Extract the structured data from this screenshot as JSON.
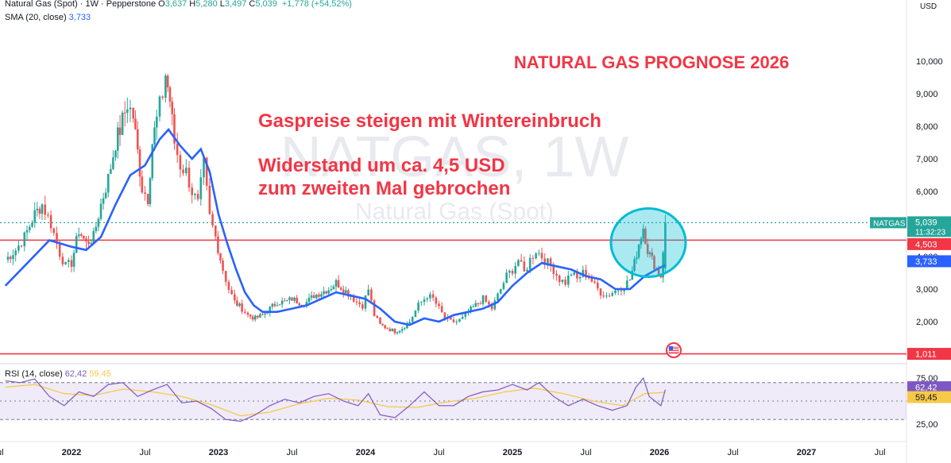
{
  "header": {
    "symbol_line": "Natural Gas (Spot) · 1W · Pepperstone",
    "ohlc": [
      {
        "k": "O",
        "v": "3,637"
      },
      {
        "k": "H",
        "v": "5,280"
      },
      {
        "k": "L",
        "v": "3,497"
      },
      {
        "k": "C",
        "v": "5,039"
      }
    ],
    "change": "+1,778 (+54,52%)",
    "sma_label": "SMA (20, close)",
    "sma_value": "3,733",
    "currency": "USD"
  },
  "watermark": {
    "big": "NATGAS, 1W",
    "small": "Natural Gas (Spot)"
  },
  "annotations": {
    "title": "NATURAL GAS PROGNOSE 2026",
    "line1": "Gaspreise steigen mit Wintereinbruch",
    "line2": "Widerstand um ca. 4,5 USD",
    "line3": "zum zweiten Mal gebrochen"
  },
  "price_labels": {
    "symbol_tag": "NATGAS",
    "last": "5,039",
    "countdown": "11:32:23",
    "resistance": "4,503",
    "sma": "3,733",
    "support": "1,011"
  },
  "rsi": {
    "label": "RSI (14, close)",
    "value": "62,42",
    "ma_value": "59,45",
    "ticks": [
      "75,00",
      "25,00"
    ]
  },
  "colors": {
    "up": "#26a69a",
    "down": "#ef5350",
    "sma": "#2962ff",
    "hline": "#f23645",
    "annotation": "#f23645",
    "circle": "#00bcd4",
    "rsi_line": "#7e57c2",
    "rsi_ma": "#f7c948"
  },
  "chart_data": {
    "type": "candlestick",
    "timeframe": "1W",
    "y_axis_ticks": [
      "10,000",
      "9,000",
      "8,000",
      "7,000",
      "6,000",
      "4,000",
      "3,000",
      "2,000"
    ],
    "x_axis_ticks": [
      "Jul",
      "2022",
      "Jul",
      "2023",
      "Jul",
      "2024",
      "Jul",
      "2025",
      "Jul",
      "2026",
      "Jul",
      "2027",
      "Jul"
    ],
    "ylim": [
      1.0,
      10.2
    ],
    "horizontal_lines": [
      {
        "price": 4.503
      },
      {
        "price": 1.011
      },
      {
        "price": 5.039,
        "style": "dotted"
      }
    ],
    "close_path": [
      {
        "x": 2021.55,
        "y": 3.9
      },
      {
        "x": 2021.62,
        "y": 4.2
      },
      {
        "x": 2021.68,
        "y": 4.6
      },
      {
        "x": 2021.75,
        "y": 5.3
      },
      {
        "x": 2021.8,
        "y": 5.6
      },
      {
        "x": 2021.86,
        "y": 5.0
      },
      {
        "x": 2021.92,
        "y": 4.1
      },
      {
        "x": 2021.96,
        "y": 3.7
      },
      {
        "x": 2022.0,
        "y": 3.8
      },
      {
        "x": 2022.05,
        "y": 4.8
      },
      {
        "x": 2022.1,
        "y": 4.4
      },
      {
        "x": 2022.15,
        "y": 4.6
      },
      {
        "x": 2022.2,
        "y": 5.6
      },
      {
        "x": 2022.25,
        "y": 6.4
      },
      {
        "x": 2022.3,
        "y": 7.5
      },
      {
        "x": 2022.33,
        "y": 7.9
      },
      {
        "x": 2022.38,
        "y": 8.7
      },
      {
        "x": 2022.42,
        "y": 8.3
      },
      {
        "x": 2022.45,
        "y": 7.2
      },
      {
        "x": 2022.48,
        "y": 6.1
      },
      {
        "x": 2022.52,
        "y": 5.8
      },
      {
        "x": 2022.55,
        "y": 7.5
      },
      {
        "x": 2022.58,
        "y": 8.2
      },
      {
        "x": 2022.62,
        "y": 9.0
      },
      {
        "x": 2022.64,
        "y": 9.6
      },
      {
        "x": 2022.67,
        "y": 8.8
      },
      {
        "x": 2022.7,
        "y": 7.5
      },
      {
        "x": 2022.74,
        "y": 6.8
      },
      {
        "x": 2022.78,
        "y": 6.6
      },
      {
        "x": 2022.82,
        "y": 6.0
      },
      {
        "x": 2022.86,
        "y": 5.6
      },
      {
        "x": 2022.9,
        "y": 6.8
      },
      {
        "x": 2022.94,
        "y": 5.2
      },
      {
        "x": 2022.98,
        "y": 4.6
      },
      {
        "x": 2023.03,
        "y": 3.6
      },
      {
        "x": 2023.07,
        "y": 3.0
      },
      {
        "x": 2023.11,
        "y": 2.6
      },
      {
        "x": 2023.16,
        "y": 2.4
      },
      {
        "x": 2023.2,
        "y": 2.2
      },
      {
        "x": 2023.25,
        "y": 2.1
      },
      {
        "x": 2023.3,
        "y": 2.2
      },
      {
        "x": 2023.35,
        "y": 2.4
      },
      {
        "x": 2023.4,
        "y": 2.6
      },
      {
        "x": 2023.45,
        "y": 2.6
      },
      {
        "x": 2023.5,
        "y": 2.7
      },
      {
        "x": 2023.55,
        "y": 2.6
      },
      {
        "x": 2023.6,
        "y": 2.6
      },
      {
        "x": 2023.65,
        "y": 2.8
      },
      {
        "x": 2023.7,
        "y": 2.9
      },
      {
        "x": 2023.75,
        "y": 3.0
      },
      {
        "x": 2023.8,
        "y": 3.2
      },
      {
        "x": 2023.85,
        "y": 3.0
      },
      {
        "x": 2023.9,
        "y": 2.8
      },
      {
        "x": 2023.94,
        "y": 2.6
      },
      {
        "x": 2023.98,
        "y": 2.5
      },
      {
        "x": 2024.02,
        "y": 3.0
      },
      {
        "x": 2024.06,
        "y": 2.2
      },
      {
        "x": 2024.1,
        "y": 1.9
      },
      {
        "x": 2024.15,
        "y": 1.8
      },
      {
        "x": 2024.2,
        "y": 1.7
      },
      {
        "x": 2024.25,
        "y": 1.8
      },
      {
        "x": 2024.3,
        "y": 2.0
      },
      {
        "x": 2024.36,
        "y": 2.5
      },
      {
        "x": 2024.42,
        "y": 2.8
      },
      {
        "x": 2024.46,
        "y": 2.7
      },
      {
        "x": 2024.5,
        "y": 2.4
      },
      {
        "x": 2024.54,
        "y": 2.1
      },
      {
        "x": 2024.58,
        "y": 2.0
      },
      {
        "x": 2024.62,
        "y": 2.0
      },
      {
        "x": 2024.66,
        "y": 2.1
      },
      {
        "x": 2024.7,
        "y": 2.3
      },
      {
        "x": 2024.75,
        "y": 2.5
      },
      {
        "x": 2024.8,
        "y": 2.7
      },
      {
        "x": 2024.86,
        "y": 2.4
      },
      {
        "x": 2024.92,
        "y": 3.0
      },
      {
        "x": 2024.96,
        "y": 3.4
      },
      {
        "x": 2025.0,
        "y": 3.6
      },
      {
        "x": 2025.04,
        "y": 3.9
      },
      {
        "x": 2025.08,
        "y": 3.5
      },
      {
        "x": 2025.12,
        "y": 3.9
      },
      {
        "x": 2025.16,
        "y": 4.2
      },
      {
        "x": 2025.2,
        "y": 4.0
      },
      {
        "x": 2025.24,
        "y": 3.8
      },
      {
        "x": 2025.28,
        "y": 3.6
      },
      {
        "x": 2025.32,
        "y": 3.3
      },
      {
        "x": 2025.36,
        "y": 3.2
      },
      {
        "x": 2025.4,
        "y": 3.5
      },
      {
        "x": 2025.44,
        "y": 3.3
      },
      {
        "x": 2025.48,
        "y": 3.5
      },
      {
        "x": 2025.52,
        "y": 3.4
      },
      {
        "x": 2025.56,
        "y": 3.1
      },
      {
        "x": 2025.6,
        "y": 2.9
      },
      {
        "x": 2025.64,
        "y": 2.8
      },
      {
        "x": 2025.68,
        "y": 2.9
      },
      {
        "x": 2025.72,
        "y": 3.0
      },
      {
        "x": 2025.76,
        "y": 3.1
      },
      {
        "x": 2025.8,
        "y": 3.3
      },
      {
        "x": 2025.83,
        "y": 3.8
      },
      {
        "x": 2025.86,
        "y": 4.4
      },
      {
        "x": 2025.89,
        "y": 4.9
      },
      {
        "x": 2025.92,
        "y": 4.2
      },
      {
        "x": 2025.95,
        "y": 3.9
      },
      {
        "x": 2025.98,
        "y": 3.6
      },
      {
        "x": 2026.01,
        "y": 3.4
      },
      {
        "x": 2026.04,
        "y": 5.039
      }
    ],
    "sma_path": [
      {
        "x": 2021.55,
        "y": 3.1
      },
      {
        "x": 2021.7,
        "y": 3.8
      },
      {
        "x": 2021.85,
        "y": 4.5
      },
      {
        "x": 2022.0,
        "y": 4.3
      },
      {
        "x": 2022.1,
        "y": 4.2
      },
      {
        "x": 2022.2,
        "y": 4.6
      },
      {
        "x": 2022.3,
        "y": 5.6
      },
      {
        "x": 2022.4,
        "y": 6.5
      },
      {
        "x": 2022.5,
        "y": 6.8
      },
      {
        "x": 2022.6,
        "y": 7.6
      },
      {
        "x": 2022.66,
        "y": 7.9
      },
      {
        "x": 2022.74,
        "y": 7.4
      },
      {
        "x": 2022.82,
        "y": 7.0
      },
      {
        "x": 2022.88,
        "y": 7.3
      },
      {
        "x": 2022.94,
        "y": 6.6
      },
      {
        "x": 2023.0,
        "y": 5.3
      },
      {
        "x": 2023.06,
        "y": 4.4
      },
      {
        "x": 2023.12,
        "y": 3.6
      },
      {
        "x": 2023.18,
        "y": 2.9
      },
      {
        "x": 2023.24,
        "y": 2.5
      },
      {
        "x": 2023.3,
        "y": 2.3
      },
      {
        "x": 2023.4,
        "y": 2.3
      },
      {
        "x": 2023.5,
        "y": 2.4
      },
      {
        "x": 2023.6,
        "y": 2.5
      },
      {
        "x": 2023.7,
        "y": 2.7
      },
      {
        "x": 2023.8,
        "y": 2.9
      },
      {
        "x": 2023.9,
        "y": 2.8
      },
      {
        "x": 2024.0,
        "y": 2.7
      },
      {
        "x": 2024.1,
        "y": 2.4
      },
      {
        "x": 2024.2,
        "y": 2.0
      },
      {
        "x": 2024.3,
        "y": 1.9
      },
      {
        "x": 2024.4,
        "y": 2.1
      },
      {
        "x": 2024.5,
        "y": 2.0
      },
      {
        "x": 2024.6,
        "y": 2.2
      },
      {
        "x": 2024.7,
        "y": 2.3
      },
      {
        "x": 2024.8,
        "y": 2.4
      },
      {
        "x": 2024.9,
        "y": 2.6
      },
      {
        "x": 2025.0,
        "y": 3.1
      },
      {
        "x": 2025.1,
        "y": 3.5
      },
      {
        "x": 2025.2,
        "y": 3.8
      },
      {
        "x": 2025.3,
        "y": 3.7
      },
      {
        "x": 2025.4,
        "y": 3.6
      },
      {
        "x": 2025.5,
        "y": 3.4
      },
      {
        "x": 2025.6,
        "y": 3.3
      },
      {
        "x": 2025.7,
        "y": 3.0
      },
      {
        "x": 2025.8,
        "y": 3.0
      },
      {
        "x": 2025.9,
        "y": 3.4
      },
      {
        "x": 2026.0,
        "y": 3.65
      },
      {
        "x": 2026.04,
        "y": 3.733
      }
    ],
    "rsi_path": [
      {
        "x": 2021.55,
        "y": 72
      },
      {
        "x": 2021.65,
        "y": 70
      },
      {
        "x": 2021.75,
        "y": 74
      },
      {
        "x": 2021.85,
        "y": 55
      },
      {
        "x": 2021.95,
        "y": 45
      },
      {
        "x": 2022.05,
        "y": 60
      },
      {
        "x": 2022.15,
        "y": 55
      },
      {
        "x": 2022.25,
        "y": 68
      },
      {
        "x": 2022.35,
        "y": 70
      },
      {
        "x": 2022.45,
        "y": 55
      },
      {
        "x": 2022.55,
        "y": 62
      },
      {
        "x": 2022.65,
        "y": 68
      },
      {
        "x": 2022.75,
        "y": 48
      },
      {
        "x": 2022.85,
        "y": 50
      },
      {
        "x": 2022.95,
        "y": 42
      },
      {
        "x": 2023.05,
        "y": 30
      },
      {
        "x": 2023.15,
        "y": 28
      },
      {
        "x": 2023.25,
        "y": 35
      },
      {
        "x": 2023.35,
        "y": 45
      },
      {
        "x": 2023.45,
        "y": 52
      },
      {
        "x": 2023.55,
        "y": 48
      },
      {
        "x": 2023.65,
        "y": 55
      },
      {
        "x": 2023.75,
        "y": 58
      },
      {
        "x": 2023.85,
        "y": 50
      },
      {
        "x": 2023.95,
        "y": 45
      },
      {
        "x": 2024.02,
        "y": 58
      },
      {
        "x": 2024.1,
        "y": 35
      },
      {
        "x": 2024.2,
        "y": 32
      },
      {
        "x": 2024.3,
        "y": 45
      },
      {
        "x": 2024.4,
        "y": 60
      },
      {
        "x": 2024.5,
        "y": 45
      },
      {
        "x": 2024.6,
        "y": 45
      },
      {
        "x": 2024.7,
        "y": 55
      },
      {
        "x": 2024.8,
        "y": 60
      },
      {
        "x": 2024.9,
        "y": 62
      },
      {
        "x": 2025.0,
        "y": 68
      },
      {
        "x": 2025.1,
        "y": 62
      },
      {
        "x": 2025.18,
        "y": 70
      },
      {
        "x": 2025.28,
        "y": 55
      },
      {
        "x": 2025.38,
        "y": 45
      },
      {
        "x": 2025.48,
        "y": 52
      },
      {
        "x": 2025.58,
        "y": 45
      },
      {
        "x": 2025.68,
        "y": 40
      },
      {
        "x": 2025.78,
        "y": 45
      },
      {
        "x": 2025.84,
        "y": 65
      },
      {
        "x": 2025.89,
        "y": 75
      },
      {
        "x": 2025.93,
        "y": 55
      },
      {
        "x": 2025.97,
        "y": 50
      },
      {
        "x": 2026.01,
        "y": 45
      },
      {
        "x": 2026.04,
        "y": 62.42
      }
    ],
    "rsi_ma_path": [
      {
        "x": 2021.55,
        "y": 65
      },
      {
        "x": 2021.75,
        "y": 68
      },
      {
        "x": 2021.95,
        "y": 58
      },
      {
        "x": 2022.15,
        "y": 56
      },
      {
        "x": 2022.35,
        "y": 63
      },
      {
        "x": 2022.55,
        "y": 60
      },
      {
        "x": 2022.75,
        "y": 55
      },
      {
        "x": 2022.95,
        "y": 46
      },
      {
        "x": 2023.15,
        "y": 34
      },
      {
        "x": 2023.35,
        "y": 38
      },
      {
        "x": 2023.55,
        "y": 47
      },
      {
        "x": 2023.75,
        "y": 53
      },
      {
        "x": 2023.95,
        "y": 51
      },
      {
        "x": 2024.15,
        "y": 44
      },
      {
        "x": 2024.35,
        "y": 43
      },
      {
        "x": 2024.55,
        "y": 49
      },
      {
        "x": 2024.75,
        "y": 53
      },
      {
        "x": 2024.95,
        "y": 60
      },
      {
        "x": 2025.15,
        "y": 64
      },
      {
        "x": 2025.35,
        "y": 58
      },
      {
        "x": 2025.55,
        "y": 50
      },
      {
        "x": 2025.75,
        "y": 45
      },
      {
        "x": 2025.9,
        "y": 58
      },
      {
        "x": 2026.04,
        "y": 59.45
      }
    ]
  }
}
